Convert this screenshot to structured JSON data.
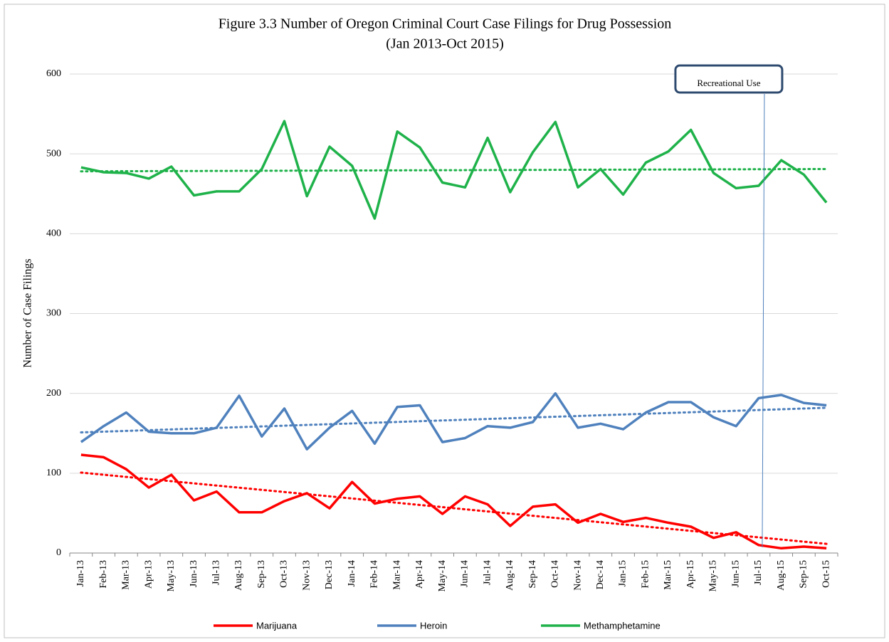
{
  "chart_data": {
    "type": "line",
    "title": "Figure 3.3 Number of Oregon Criminal Court Case Filings for Drug Possession",
    "subtitle": "(Jan 2013-Oct 2015)",
    "y_label": "Number of Case Filings",
    "categories": [
      "Jan-13",
      "Feb-13",
      "Mar-13",
      "Apr-13",
      "May-13",
      "Jun-13",
      "Jul-13",
      "Aug-13",
      "Sep-13",
      "Oct-13",
      "Nov-13",
      "Dec-13",
      "Jan-14",
      "Feb-14",
      "Mar-14",
      "Apr-14",
      "May-14",
      "Jun-14",
      "Jul-14",
      "Aug-14",
      "Sep-14",
      "Oct-14",
      "Nov-14",
      "Dec-14",
      "Jan-15",
      "Feb-15",
      "Mar-15",
      "Apr-15",
      "May-15",
      "Jun-15",
      "Jul-15",
      "Aug-15",
      "Sep-15",
      "Oct-15"
    ],
    "series": [
      {
        "name": "Marijuana",
        "color": "#ff0000",
        "trendline": "linear",
        "values": [
          123,
          120,
          105,
          82,
          98,
          66,
          77,
          51,
          51,
          65,
          75,
          56,
          89,
          62,
          68,
          71,
          49,
          71,
          61,
          34,
          58,
          61,
          38,
          49,
          39,
          44,
          38,
          33,
          19,
          26,
          10,
          6,
          8,
          6
        ]
      },
      {
        "name": "Heroin",
        "color": "#4f81bd",
        "trendline": "linear",
        "values": [
          139,
          159,
          176,
          152,
          150,
          150,
          157,
          197,
          146,
          181,
          130,
          157,
          178,
          137,
          183,
          185,
          139,
          144,
          159,
          157,
          164,
          200,
          157,
          162,
          155,
          176,
          189,
          189,
          170,
          159,
          194,
          198,
          188,
          185
        ]
      },
      {
        "name": "Methamphetamine",
        "color": "#1fb24a",
        "trendline": "linear",
        "values": [
          483,
          477,
          476,
          469,
          484,
          448,
          453,
          453,
          481,
          541,
          447,
          509,
          485,
          419,
          528,
          508,
          464,
          458,
          520,
          452,
          502,
          540,
          458,
          481,
          449,
          489,
          503,
          530,
          476,
          457,
          460,
          492,
          474,
          439
        ]
      }
    ],
    "ylim": [
      0,
      600
    ],
    "yticks": [
      0,
      100,
      200,
      300,
      400,
      500,
      600
    ],
    "grid": true,
    "legend": "bottom",
    "annotation": {
      "text": "Recreational Use",
      "x": "Jul-15"
    }
  }
}
